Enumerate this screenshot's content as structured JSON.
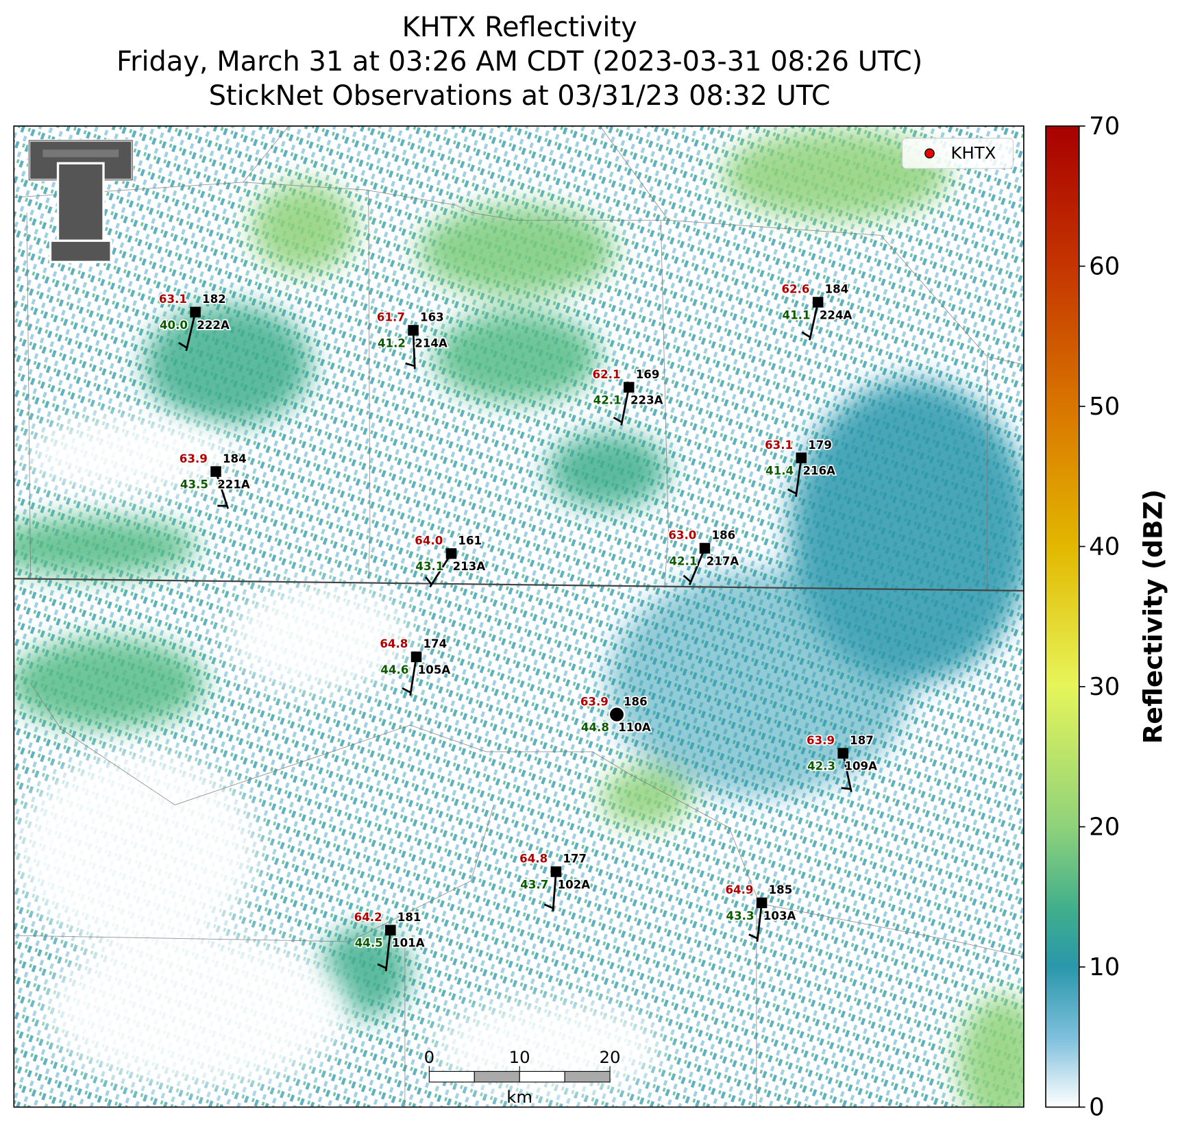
{
  "title": [
    "KHTX Reflectivity",
    "Friday, March 31 at 03:26 AM CDT (2023-03-31 08:26 UTC)",
    "StickNet Observations at 03/31/23 08:32 UTC"
  ],
  "legend": {
    "label": "KHTX"
  },
  "colorbar": {
    "label": "Reflectivity (dBZ)",
    "lim": [
      0,
      70
    ],
    "ticks": [
      0,
      10,
      20,
      30,
      40,
      50,
      60,
      70
    ]
  },
  "scale_bar": {
    "ticks": [
      0,
      10,
      20
    ],
    "unit": "km"
  },
  "stations": [
    {
      "id": "222A",
      "temperature": "63.1",
      "dewpoint": "40.0",
      "value": "182"
    },
    {
      "id": "214A",
      "temperature": "61.7",
      "dewpoint": "41.2",
      "value": "163"
    },
    {
      "id": "223A",
      "temperature": "62.1",
      "dewpoint": "42.1",
      "value": "169"
    },
    {
      "id": "224A",
      "temperature": "62.6",
      "dewpoint": "41.1",
      "value": "184"
    },
    {
      "id": "221A",
      "temperature": "63.9",
      "dewpoint": "43.5",
      "value": "184"
    },
    {
      "id": "216A",
      "temperature": "63.1",
      "dewpoint": "41.4",
      "value": "179"
    },
    {
      "id": "213A",
      "temperature": "64.0",
      "dewpoint": "43.1",
      "value": "161"
    },
    {
      "id": "217A",
      "temperature": "63.0",
      "dewpoint": "42.1",
      "value": "186"
    },
    {
      "id": "105A",
      "temperature": "64.8",
      "dewpoint": "44.6",
      "value": "174"
    },
    {
      "id": "110A",
      "temperature": "63.9",
      "dewpoint": "44.8",
      "value": "186"
    },
    {
      "id": "109A",
      "temperature": "63.9",
      "dewpoint": "42.3",
      "value": "187"
    },
    {
      "id": "102A",
      "temperature": "64.8",
      "dewpoint": "43.7",
      "value": "177"
    },
    {
      "id": "103A",
      "temperature": "64.9",
      "dewpoint": "43.3",
      "value": "185"
    },
    {
      "id": "101A",
      "temperature": "64.2",
      "dewpoint": "44.5",
      "value": "181"
    }
  ]
}
